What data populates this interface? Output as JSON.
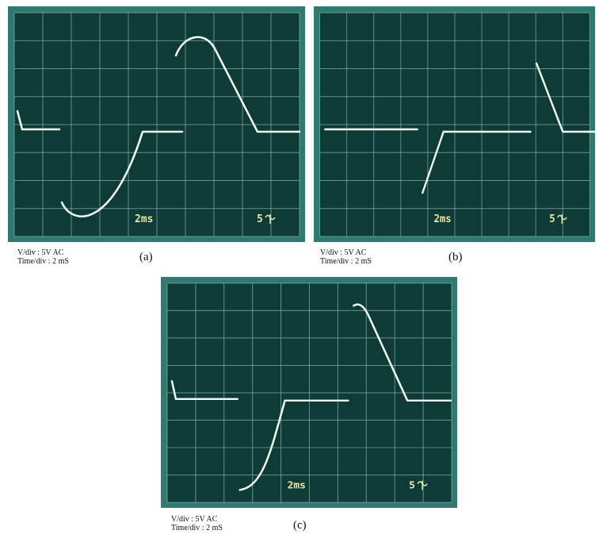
{
  "panels": [
    {
      "label": "(a)",
      "volts_per_div": "V/div : 5V AC",
      "time_per_div": "Time/div : 2 mS",
      "screen_time": "2ms",
      "screen_volts": "5"
    },
    {
      "label": "(b)",
      "volts_per_div": "V/div : 5V AC",
      "time_per_div": "Time/div : 2 mS",
      "screen_time": "2ms",
      "screen_volts": "5"
    },
    {
      "label": "(c)",
      "volts_per_div": "V/div : 5V AC",
      "time_per_div": "Time/div : 2 mS",
      "screen_time": "2ms",
      "screen_volts": "5"
    }
  ]
}
